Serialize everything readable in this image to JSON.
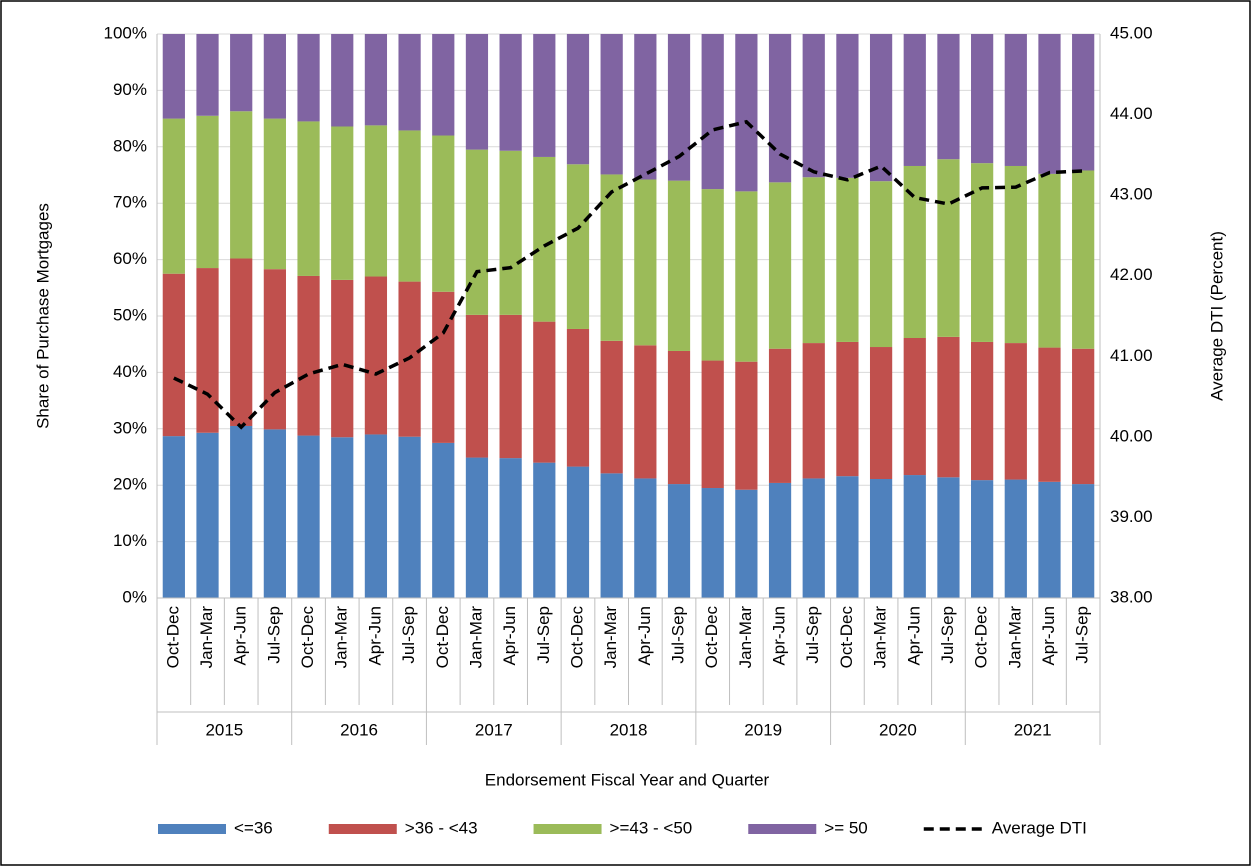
{
  "chart_data": {
    "type": "bar",
    "stacked": true,
    "x_label": "Endorsement Fiscal Year and Quarter",
    "y_label": "Share of Purchase Mortgages",
    "y2_label": "Average DTI (Percent)",
    "categories": [
      "Oct-Dec",
      "Jan-Mar",
      "Apr-Jun",
      "Jul-Sep",
      "Oct-Dec",
      "Jan-Mar",
      "Apr-Jun",
      "Jul-Sep",
      "Oct-Dec",
      "Jan-Mar",
      "Apr-Jun",
      "Jul-Sep",
      "Oct-Dec",
      "Jan-Mar",
      "Apr-Jun",
      "Jul-Sep",
      "Oct-Dec",
      "Jan-Mar",
      "Apr-Jun",
      "Jul-Sep",
      "Oct-Dec",
      "Jan-Mar",
      "Apr-Jun",
      "Jul-Sep",
      "Oct-Dec",
      "Jan-Mar",
      "Apr-Jun",
      "Jul-Sep"
    ],
    "category_groups": [
      "2015",
      "2016",
      "2017",
      "2018",
      "2019",
      "2020",
      "2021"
    ],
    "series": [
      {
        "name": "<=36",
        "color": "#4f81bd",
        "values": [
          28.7,
          29.3,
          30.5,
          29.9,
          28.8,
          28.5,
          29.0,
          28.6,
          27.5,
          24.9,
          24.8,
          24.0,
          23.3,
          22.1,
          21.2,
          20.2,
          19.5,
          19.2,
          20.4,
          21.2,
          21.6,
          21.1,
          21.8,
          21.4,
          20.9,
          21.0,
          20.6,
          20.2
        ]
      },
      {
        "name": ">36 - <43",
        "color": "#c0504d",
        "values": [
          28.8,
          29.2,
          29.7,
          28.4,
          28.3,
          27.9,
          28.0,
          27.5,
          26.8,
          25.3,
          25.4,
          25.0,
          24.4,
          23.5,
          23.6,
          23.6,
          22.6,
          22.7,
          23.8,
          24.0,
          23.8,
          23.4,
          24.3,
          24.9,
          24.5,
          24.2,
          23.8,
          24.0
        ]
      },
      {
        "name": ">=43 - <50",
        "color": "#9bbb59",
        "values": [
          27.5,
          27.0,
          26.1,
          26.7,
          27.4,
          27.2,
          26.8,
          26.8,
          27.7,
          29.3,
          29.1,
          29.2,
          29.2,
          29.5,
          29.4,
          30.2,
          30.4,
          30.2,
          29.5,
          29.4,
          29.1,
          29.4,
          30.5,
          31.5,
          31.7,
          31.4,
          30.8,
          31.6
        ]
      },
      {
        "name": ">= 50",
        "color": "#8064a2",
        "values": [
          15.0,
          14.5,
          13.7,
          15.0,
          15.5,
          16.4,
          16.2,
          17.1,
          18.0,
          20.5,
          20.7,
          21.8,
          23.1,
          24.9,
          25.8,
          26.0,
          27.5,
          27.9,
          26.3,
          25.4,
          25.5,
          26.1,
          23.4,
          22.2,
          22.9,
          23.4,
          24.8,
          24.2
        ]
      },
      {
        "name": "Average DTI",
        "type": "line",
        "dashed": true,
        "axis": "y2",
        "color": "#000000",
        "values": [
          40.73,
          40.53,
          40.12,
          40.55,
          40.78,
          40.9,
          40.78,
          40.98,
          41.29,
          42.05,
          42.1,
          42.37,
          42.59,
          43.04,
          43.26,
          43.48,
          43.81,
          43.91,
          43.51,
          43.29,
          43.19,
          43.36,
          42.97,
          42.89,
          43.09,
          43.1,
          43.28,
          43.3
        ]
      }
    ],
    "ylim": [
      0,
      100
    ],
    "yticks": [
      {
        "value": 0,
        "label": "0%"
      },
      {
        "value": 10,
        "label": "10%"
      },
      {
        "value": 20,
        "label": "20%"
      },
      {
        "value": 30,
        "label": "30%"
      },
      {
        "value": 40,
        "label": "40%"
      },
      {
        "value": 50,
        "label": "50%"
      },
      {
        "value": 60,
        "label": "60%"
      },
      {
        "value": 70,
        "label": "70%"
      },
      {
        "value": 80,
        "label": "80%"
      },
      {
        "value": 90,
        "label": "90%"
      },
      {
        "value": 100,
        "label": "100%"
      }
    ],
    "y2lim": [
      38,
      45
    ],
    "y2ticks": [
      {
        "value": 38,
        "label": "38.00"
      },
      {
        "value": 39,
        "label": "39.00"
      },
      {
        "value": 40,
        "label": "40.00"
      },
      {
        "value": 41,
        "label": "41.00"
      },
      {
        "value": 42,
        "label": "42.00"
      },
      {
        "value": 43,
        "label": "43.00"
      },
      {
        "value": 44,
        "label": "44.00"
      },
      {
        "value": 45,
        "label": "45.00"
      }
    ],
    "grid": true,
    "legend": "bottom"
  }
}
